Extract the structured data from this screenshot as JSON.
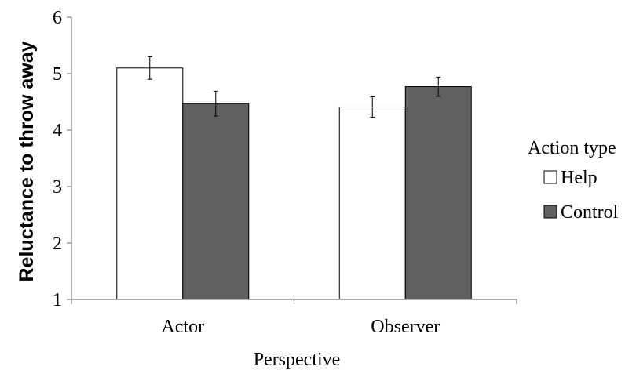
{
  "chart_data": {
    "type": "bar",
    "xlabel": "Perspective",
    "ylabel": "Reluctance to throw away",
    "categories": [
      "Actor",
      "Observer"
    ],
    "ylim": [
      1,
      6
    ],
    "yticks": [
      1,
      2,
      3,
      4,
      5,
      6
    ],
    "grid": false,
    "legend": {
      "title": "Action type",
      "placement": "right"
    },
    "series": [
      {
        "name": "Help",
        "color": "#ffffff",
        "values": [
          5.1,
          4.41
        ],
        "errors": [
          0.2,
          0.18
        ]
      },
      {
        "name": "Control",
        "color": "#606060",
        "values": [
          4.47,
          4.77
        ],
        "errors": [
          0.22,
          0.17
        ]
      }
    ]
  }
}
